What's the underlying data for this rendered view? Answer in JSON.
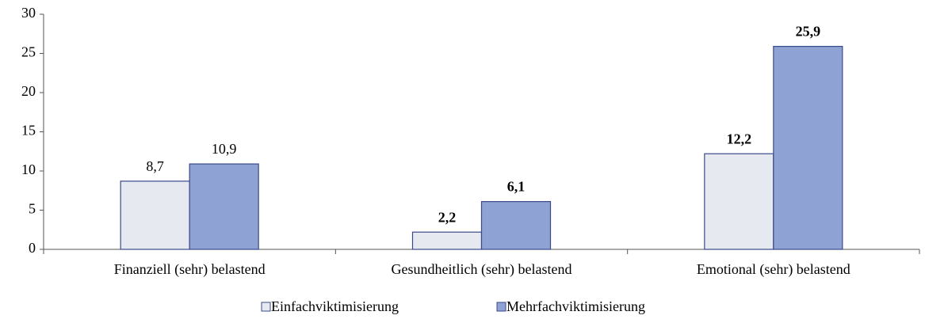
{
  "chart_data": {
    "type": "bar",
    "categories": [
      "Finanziell (sehr) belastend",
      "Gesundheitlich (sehr) belastend",
      "Emotional (sehr) belastend"
    ],
    "series": [
      {
        "name": "Einfachviktimisierung",
        "color": "#e6e9ef",
        "values": [
          8.7,
          2.2,
          12.2
        ],
        "value_labels": [
          "8,7",
          "2,2",
          "12,2"
        ],
        "bold_labels": [
          false,
          true,
          true
        ]
      },
      {
        "name": "Mehrfachviktimisierung",
        "color": "#8fa2d4",
        "values": [
          10.9,
          6.1,
          25.9
        ],
        "value_labels": [
          "10,9",
          "6,1",
          "25,9"
        ],
        "bold_labels": [
          false,
          true,
          true
        ]
      }
    ],
    "ylim": [
      0,
      30
    ],
    "yticks": [
      0,
      5,
      10,
      15,
      20,
      25,
      30
    ],
    "grid": false,
    "legend": "bottom"
  }
}
